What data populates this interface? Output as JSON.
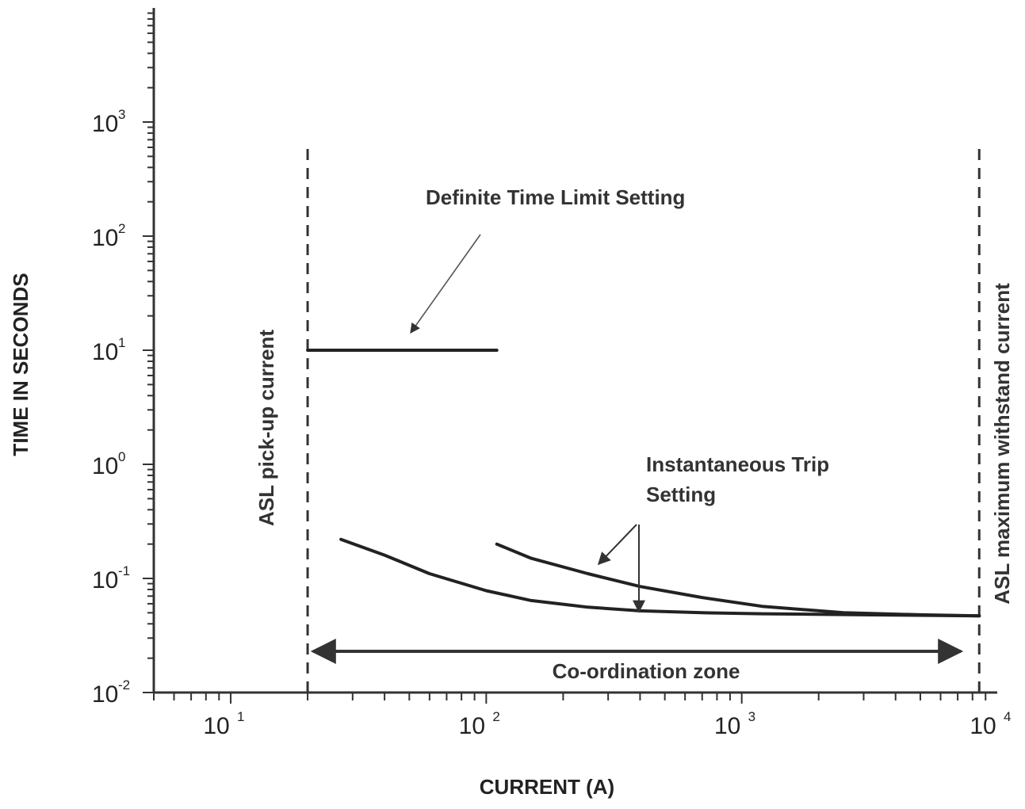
{
  "chart_data": {
    "type": "line",
    "title": "",
    "xlabel": "CURRENT (A)",
    "ylabel": "TIME IN SECONDS",
    "x_scale": "log",
    "y_scale": "log",
    "xlim": [
      5,
      10000
    ],
    "ylim": [
      0.01,
      10000
    ],
    "x_ticks": [
      {
        "base": "10",
        "exp": "1",
        "value": 10
      },
      {
        "base": "10",
        "exp": "2",
        "value": 100
      },
      {
        "base": "10",
        "exp": "3",
        "value": 1000
      },
      {
        "base": "10",
        "exp": "4",
        "value": 10000
      }
    ],
    "y_ticks": [
      {
        "base": "10",
        "exp": "-2",
        "value": 0.01
      },
      {
        "base": "10",
        "exp": "-1",
        "value": 0.1
      },
      {
        "base": "10",
        "exp": "0",
        "value": 1
      },
      {
        "base": "10",
        "exp": "1",
        "value": 10
      },
      {
        "base": "10",
        "exp": "2",
        "value": 100
      },
      {
        "base": "10",
        "exp": "3",
        "value": 1000
      }
    ],
    "grid": false,
    "series": [
      {
        "x": [
          20,
          110
        ],
        "y": [
          10,
          10
        ]
      },
      {
        "x": [
          27,
          40,
          60,
          100,
          150,
          250,
          400,
          700,
          1200,
          3000,
          8500
        ],
        "y": [
          0.22,
          0.16,
          0.11,
          0.078,
          0.064,
          0.056,
          0.052,
          0.05,
          0.049,
          0.048,
          0.047
        ]
      },
      {
        "x": [
          110,
          150,
          250,
          400,
          700,
          1200,
          2500,
          5000,
          8500
        ],
        "y": [
          0.2,
          0.15,
          0.11,
          0.085,
          0.068,
          0.057,
          0.05,
          0.048,
          0.047
        ]
      }
    ],
    "vertical_lines": [
      {
        "x": 20,
        "label": "ASL pick-up current"
      },
      {
        "x": 8500,
        "label": "ASL maximum withstand current"
      }
    ],
    "annotations": {
      "definite_time": "Definite Time Limit Setting",
      "instantaneous_line1": "Instantaneous Trip",
      "instantaneous_line2": "Setting",
      "coordination_zone": "Co-ordination zone"
    }
  }
}
